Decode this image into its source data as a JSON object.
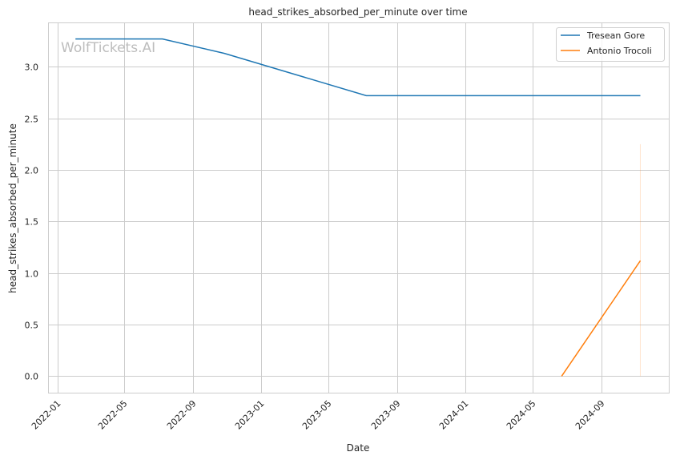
{
  "chart_data": {
    "type": "line",
    "title": "head_strikes_absorbed_per_minute over time",
    "xlabel": "Date",
    "ylabel": "head_strikes_absorbed_per_minute",
    "xlim": [
      "2021-12-15",
      "2024-12-31"
    ],
    "ylim": [
      -0.16,
      3.43
    ],
    "x_ticks": [
      "2022-01",
      "2022-05",
      "2022-09",
      "2023-01",
      "2023-05",
      "2023-09",
      "2024-01",
      "2024-05",
      "2024-09"
    ],
    "y_ticks": [
      "0.0",
      "0.5",
      "1.0",
      "1.5",
      "2.0",
      "2.5",
      "3.0"
    ],
    "grid": true,
    "legend_position": "top-right",
    "watermark": "WolfTickets.AI",
    "series": [
      {
        "name": "Tresean Gore",
        "color": "#1f77b4",
        "x": [
          "2022-02-02",
          "2022-07-08",
          "2022-10-27",
          "2023-07-08",
          "2024-11-10"
        ],
        "y": [
          3.27,
          3.27,
          3.13,
          2.72,
          2.72
        ]
      },
      {
        "name": "Antonio Trocoli",
        "color": "#ff7f0e",
        "x": [
          "2024-06-22",
          "2024-11-10"
        ],
        "y": [
          0.0,
          1.12
        ],
        "band": {
          "x": "2024-11-10",
          "low": 0.0,
          "high": 2.25
        }
      }
    ]
  }
}
